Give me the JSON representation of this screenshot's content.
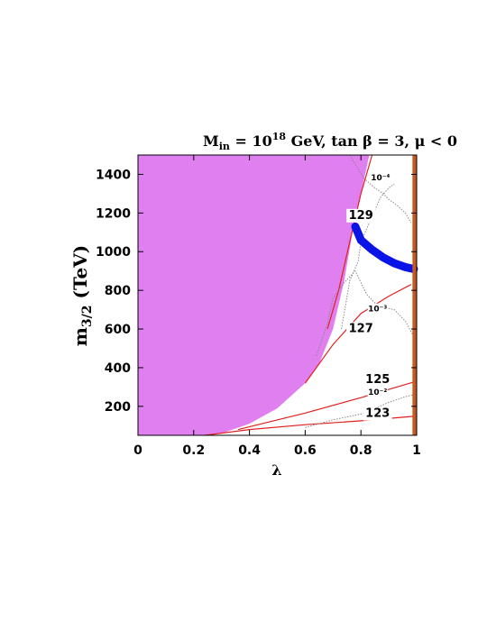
{
  "chart_data": {
    "type": "contour",
    "title": {
      "base": "M",
      "sub": "in",
      "eq": " = 10",
      "sup": "18",
      "rest": " GeV, tan β = 3, μ < 0"
    },
    "xlabel": "λ",
    "ylabel": {
      "base": "m",
      "sub": "3/2",
      "rest": " (TeV)"
    },
    "xlim": [
      0,
      1
    ],
    "ylim": [
      50,
      1500
    ],
    "xticks": [
      "0",
      "0.2",
      "0.4",
      "0.6",
      "0.8",
      "1"
    ],
    "xtick_values": [
      0,
      0.2,
      0.4,
      0.6,
      0.8,
      1
    ],
    "yticks": [
      "200",
      "400",
      "600",
      "800",
      "1000",
      "1200",
      "1400"
    ],
    "ytick_values": [
      200,
      400,
      600,
      800,
      1000,
      1200,
      1400
    ],
    "excluded_region": {
      "color": "#e07ff0",
      "boundary": [
        [
          0.25,
          50
        ],
        [
          0.3,
          60
        ],
        [
          0.4,
          110
        ],
        [
          0.5,
          190
        ],
        [
          0.6,
          320
        ],
        [
          0.65,
          420
        ],
        [
          0.7,
          600
        ],
        [
          0.74,
          850
        ],
        [
          0.77,
          1100
        ],
        [
          0.8,
          1300
        ],
        [
          0.83,
          1500
        ]
      ]
    },
    "higgs_mass_contours": {
      "color": "#e02020",
      "series": [
        {
          "label": "123",
          "points": [
            [
              0.24,
              50
            ],
            [
              0.4,
              80
            ],
            [
              0.6,
              105
            ],
            [
              0.8,
              125
            ],
            [
              1.0,
              150
            ]
          ]
        },
        {
          "label": "125",
          "points": [
            [
              0.36,
              80
            ],
            [
              0.6,
              165
            ],
            [
              0.8,
              245
            ],
            [
              1.0,
              330
            ]
          ]
        },
        {
          "label": "127",
          "points": [
            [
              0.6,
              320
            ],
            [
              0.7,
              520
            ],
            [
              0.8,
              680
            ],
            [
              0.9,
              770
            ],
            [
              0.98,
              830
            ]
          ]
        },
        {
          "label": "129",
          "points": [
            [
              0.68,
              600
            ],
            [
              0.72,
              800
            ],
            [
              0.76,
              1050
            ],
            [
              0.8,
              1300
            ],
            [
              0.84,
              1500
            ]
          ]
        }
      ],
      "label_positions": [
        {
          "text": "123",
          "x": 0.86,
          "y": 145
        },
        {
          "text": "125",
          "x": 0.86,
          "y": 320
        },
        {
          "text": "127",
          "x": 0.8,
          "y": 585
        },
        {
          "text": "129",
          "x": 0.8,
          "y": 1170
        }
      ]
    },
    "dotted_contours": {
      "color": "#888888",
      "series": [
        {
          "label": "10⁻⁴",
          "points": [
            [
              0.76,
              1500
            ],
            [
              0.81,
              1380
            ],
            [
              0.85,
              1330
            ],
            [
              0.88,
              1300
            ],
            [
              0.9,
              1270
            ],
            [
              0.93,
              1240
            ],
            [
              0.96,
              1200
            ],
            [
              0.98,
              1150
            ]
          ]
        },
        {
          "label": "10⁻³",
          "points": [
            [
              0.73,
              600
            ],
            [
              0.76,
              850
            ],
            [
              0.79,
              950
            ],
            [
              0.8,
              1050
            ],
            [
              0.83,
              1150
            ],
            [
              0.87,
              1280
            ],
            [
              0.9,
              1330
            ],
            [
              0.92,
              1350
            ]
          ]
        },
        {
          "label": "10⁻²",
          "points": [
            [
              0.64,
              460
            ],
            [
              0.68,
              630
            ],
            [
              0.7,
              760
            ],
            [
              0.74,
              840
            ],
            [
              0.78,
              900
            ],
            [
              0.82,
              780
            ],
            [
              0.86,
              720
            ],
            [
              0.92,
              700
            ],
            [
              0.96,
              640
            ],
            [
              0.99,
              560
            ]
          ]
        },
        {
          "label": "",
          "points": [
            [
              0.6,
              90
            ],
            [
              0.7,
              130
            ],
            [
              0.8,
              160
            ],
            [
              0.9,
              220
            ],
            [
              0.96,
              250
            ],
            [
              0.99,
              260
            ]
          ]
        }
      ],
      "label_positions": [
        {
          "text": "10⁻⁴",
          "x": 0.87,
          "y": 1370
        },
        {
          "text": "10⁻³",
          "x": 0.86,
          "y": 690
        },
        {
          "text": "10⁻²",
          "x": 0.86,
          "y": 260
        }
      ]
    },
    "relic_band": {
      "color": "#0a14e6",
      "points": [
        [
          0.78,
          1130
        ],
        [
          0.8,
          1060
        ],
        [
          0.84,
          1010
        ],
        [
          0.88,
          970
        ],
        [
          0.92,
          940
        ],
        [
          0.96,
          920
        ],
        [
          0.99,
          910
        ]
      ]
    },
    "right_edge_band": {
      "color": "#c65a1e",
      "x_range": [
        0.985,
        1.0
      ]
    },
    "grid": false,
    "legend": "none"
  }
}
